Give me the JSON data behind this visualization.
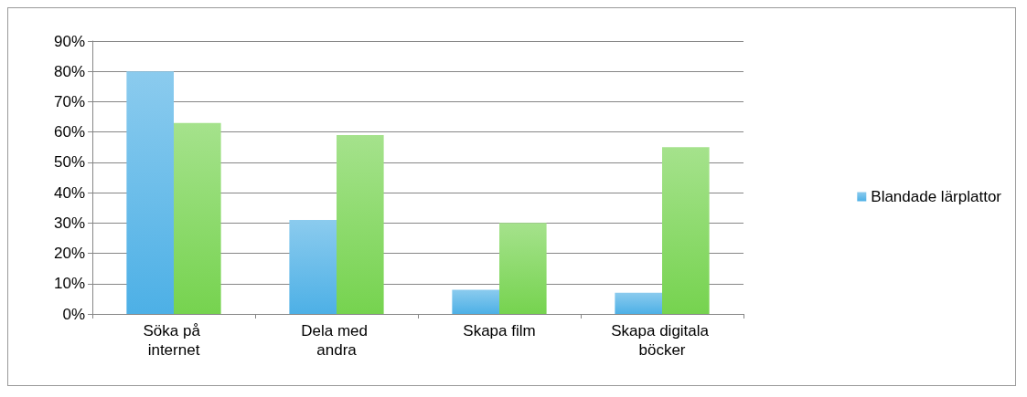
{
  "chart_data": {
    "type": "bar",
    "categories": [
      "Söka på internet",
      "Dela med andra",
      "Skapa film",
      "Skapa digitala böcker"
    ],
    "series": [
      {
        "name": "Blandade lärplattor",
        "color": "#4db0e6",
        "values": [
          80,
          31,
          8,
          7
        ]
      },
      {
        "color": "#76d34f",
        "values": [
          63,
          59,
          30,
          55
        ]
      }
    ],
    "ylim": [
      0,
      90
    ],
    "yticks": [
      {
        "value": 0,
        "label": "0%"
      },
      {
        "value": 10,
        "label": "10%"
      },
      {
        "value": 20,
        "label": "20%"
      },
      {
        "value": 30,
        "label": "30%"
      },
      {
        "value": 40,
        "label": "40%"
      },
      {
        "value": 50,
        "label": "50%"
      },
      {
        "value": 60,
        "label": "60%"
      },
      {
        "value": 70,
        "label": "70%"
      },
      {
        "value": 80,
        "label": "80%"
      },
      {
        "value": 90,
        "label": "90%"
      }
    ],
    "grid": "y",
    "legend": "right"
  }
}
